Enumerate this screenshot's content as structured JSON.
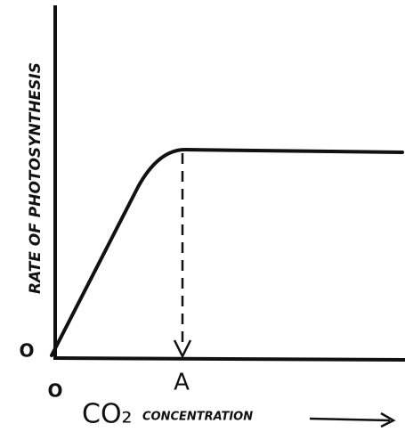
{
  "y_axis": {
    "label": "RATE OF PHOTOSYNTHESIS",
    "origin": "O"
  },
  "x_axis": {
    "origin": "O",
    "marker": "A",
    "label_main": "CO₂",
    "label_rest": "CONCENTRATION"
  }
}
